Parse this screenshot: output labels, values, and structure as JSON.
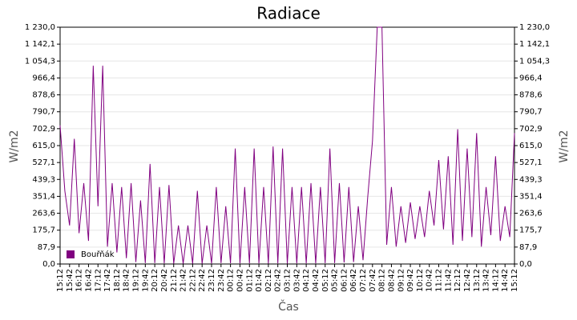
{
  "chart_data": {
    "type": "line",
    "title": "Radiace",
    "x_label": "Čas",
    "y_label": "W/m2",
    "categories": [
      "15:12",
      null,
      "15:42",
      null,
      "16:12",
      null,
      "16:42",
      null,
      "17:12",
      null,
      "17:42",
      null,
      "18:12",
      null,
      "18:42",
      null,
      "19:12",
      null,
      "19:42",
      null,
      "20:12",
      null,
      "20:42",
      null,
      "21:12",
      null,
      "21:42",
      null,
      "22:12",
      null,
      "22:42",
      null,
      "23:12",
      null,
      "23:42",
      null,
      "00:12",
      null,
      "00:42",
      null,
      "01:12",
      null,
      "01:42",
      null,
      "02:12",
      null,
      "02:42",
      null,
      "03:12",
      null,
      "03:42",
      null,
      "04:12",
      null,
      "04:42",
      null,
      "05:12",
      null,
      "05:42",
      null,
      "06:12",
      null,
      "06:42",
      null,
      "07:12",
      null,
      "07:42",
      null,
      "08:12",
      null,
      "08:42",
      null,
      "09:12",
      null,
      "09:42",
      null,
      "10:12",
      null,
      "10:42",
      null,
      "11:12",
      null,
      "11:42",
      null,
      "12:12",
      null,
      "12:42",
      null,
      "13:12",
      null,
      "13:42",
      null,
      "14:12",
      null,
      "14:42",
      null,
      "15:12"
    ],
    "series": [
      {
        "name": "Bouřňák",
        "color": "#800080",
        "values": [
          720,
          380,
          200,
          650,
          160,
          420,
          120,
          1030,
          300,
          1030,
          90,
          420,
          60,
          400,
          30,
          420,
          10,
          330,
          5,
          520,
          5,
          400,
          3,
          410,
          2,
          200,
          2,
          200,
          2,
          380,
          2,
          200,
          3,
          400,
          5,
          300,
          4,
          600,
          3,
          400,
          3,
          600,
          3,
          400,
          2,
          610,
          3,
          600,
          2,
          400,
          3,
          400,
          3,
          420,
          3,
          400,
          4,
          600,
          5,
          420,
          8,
          400,
          10,
          300,
          20,
          350,
          640,
          1230,
          1230,
          100,
          400,
          90,
          300,
          110,
          320,
          130,
          300,
          140,
          380,
          200,
          540,
          180,
          560,
          100,
          700,
          120,
          600,
          140,
          680,
          90,
          400,
          150,
          560,
          120,
          300,
          140,
          680
        ]
      }
    ],
    "ylim": [
      0,
      1230
    ],
    "yticks": [
      {
        "value": 0,
        "label": "0,0"
      },
      {
        "value": 87.9,
        "label": "87,9"
      },
      {
        "value": 175.7,
        "label": "175,7"
      },
      {
        "value": 263.6,
        "label": "263,6"
      },
      {
        "value": 351.4,
        "label": "351,4"
      },
      {
        "value": 439.3,
        "label": "439,3"
      },
      {
        "value": 527.1,
        "label": "527,1"
      },
      {
        "value": 615,
        "label": "615,0"
      },
      {
        "value": 702.9,
        "label": "702,9"
      },
      {
        "value": 790.7,
        "label": "790,7"
      },
      {
        "value": 878.6,
        "label": "878,6"
      },
      {
        "value": 966.4,
        "label": "966,4"
      },
      {
        "value": 1054.3,
        "label": "1 054,3"
      },
      {
        "value": 1142.1,
        "label": "1 142,1"
      },
      {
        "value": 1230,
        "label": "1 230,0"
      }
    ],
    "grid": true,
    "legend": "lower left"
  }
}
